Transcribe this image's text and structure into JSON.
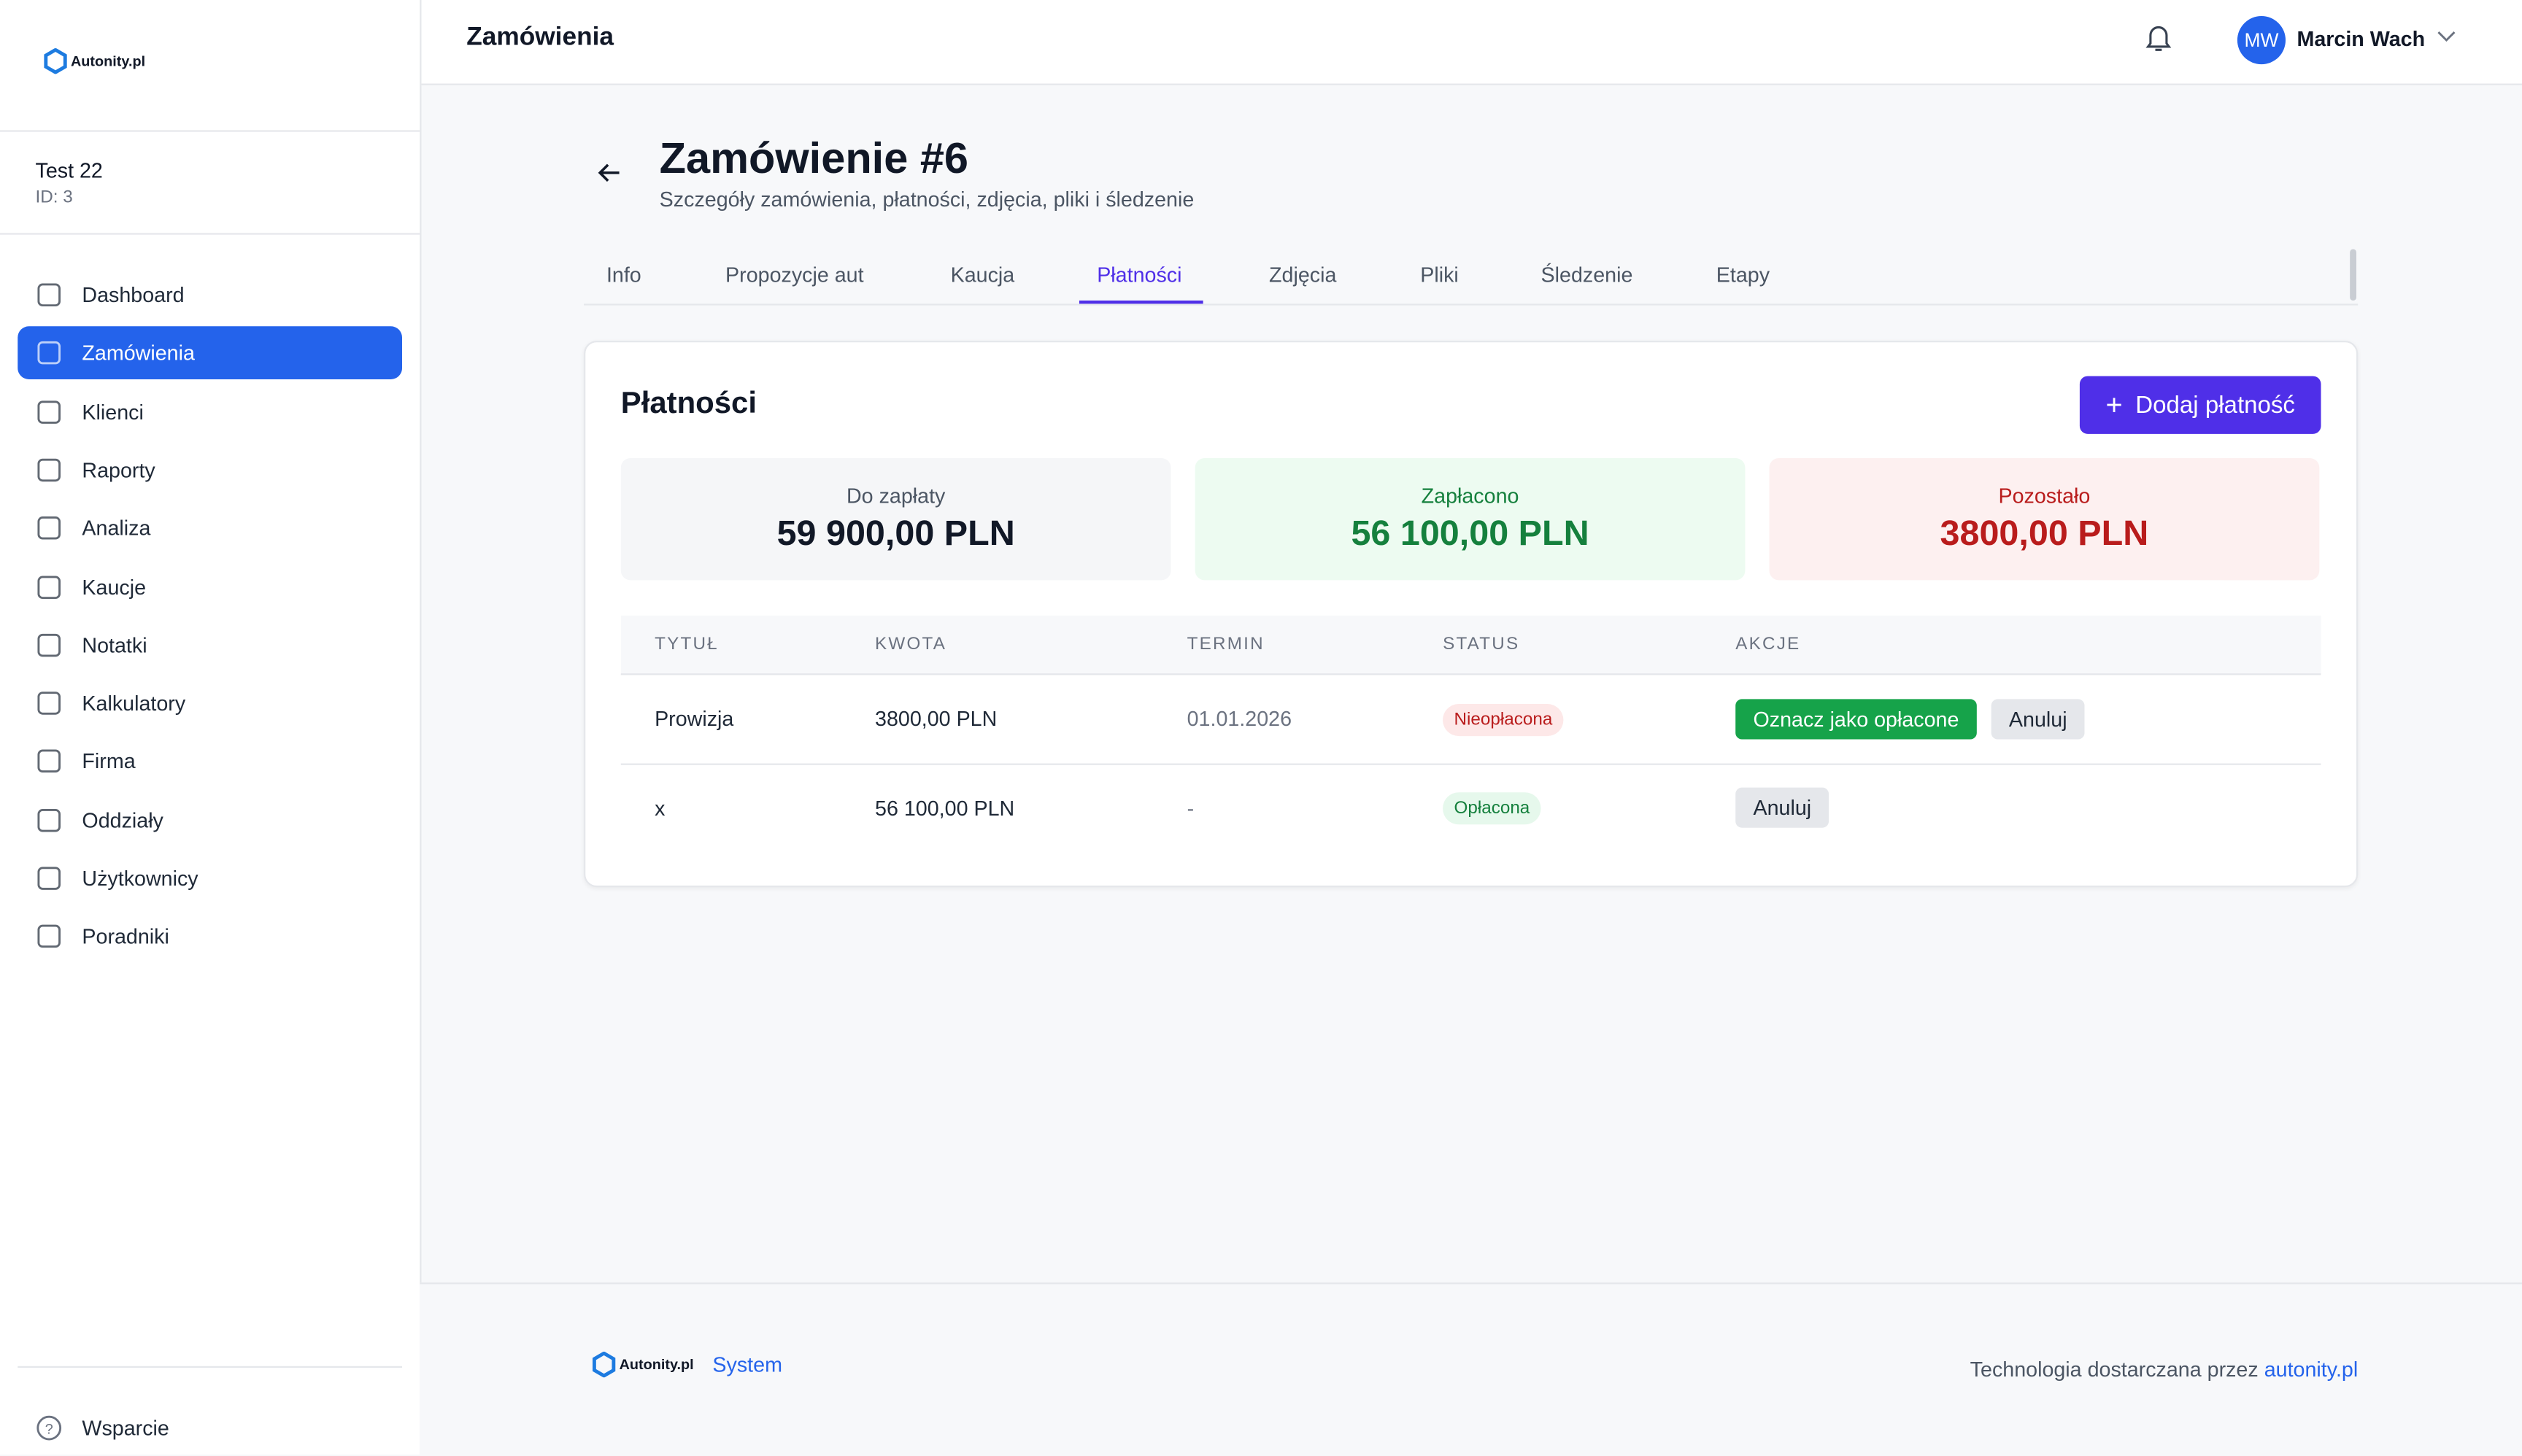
{
  "header": {
    "title": "Zamówienia",
    "user_initials": "MW",
    "user_name": "Marcin Wach"
  },
  "sidebar": {
    "logo": "Autonity.pl",
    "org_name": "Test 22",
    "org_id": "ID: 3",
    "nav": [
      "Dashboard",
      "Zamówienia",
      "Klienci",
      "Raporty",
      "Analiza",
      "Kaucje",
      "Notatki",
      "Kalkulatory",
      "Firma",
      "Oddziały",
      "Użytkownicy",
      "Poradniki"
    ],
    "support": "Wsparcie"
  },
  "page": {
    "title": "Zamówienie #6",
    "subtitle": "Szczegóły zamówienia, płatności, zdjęcia, pliki i śledzenie",
    "tabs": [
      "Info",
      "Propozycje aut",
      "Kaucja",
      "Płatności",
      "Zdjęcia",
      "Pliki",
      "Śledzenie",
      "Etapy"
    ]
  },
  "card": {
    "title": "Płatności",
    "add_button": "Dodaj płatność",
    "summary": [
      {
        "label": "Do zapłaty",
        "value": "59 900,00 PLN"
      },
      {
        "label": "Zapłacono",
        "value": "56 100,00 PLN"
      },
      {
        "label": "Pozostało",
        "value": "3800,00 PLN"
      }
    ],
    "table": {
      "headers": [
        "TYTUŁ",
        "KWOTA",
        "TERMIN",
        "STATUS",
        "AKCJE"
      ],
      "rows": [
        {
          "title": "Prowizja",
          "amount": "3800,00 PLN",
          "due": "01.01.2026",
          "status": "Nieopłacona",
          "actions": [
            "Oznacz jako opłacone",
            "Anuluj"
          ]
        },
        {
          "title": "x",
          "amount": "56 100,00 PLN",
          "due": "-",
          "status": "Opłacona",
          "actions": [
            "Anuluj"
          ]
        }
      ]
    }
  },
  "footer": {
    "logo": "Autonity.pl",
    "system": "System",
    "credit": "Technologia dostarczana przez",
    "credit_link": "autonity.pl"
  }
}
